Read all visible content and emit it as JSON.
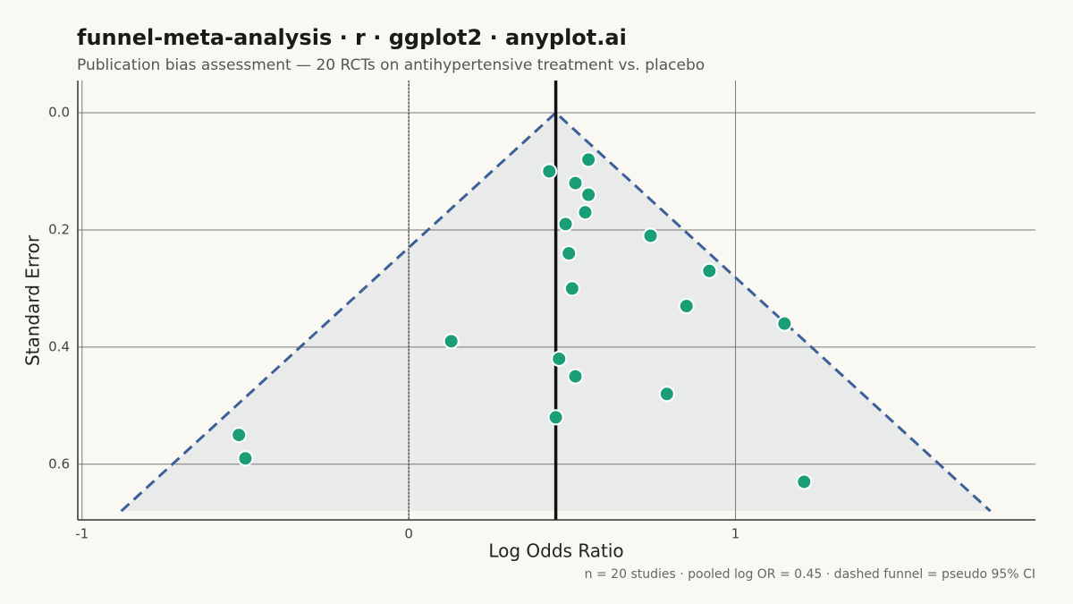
{
  "chart_data": {
    "type": "funnel",
    "title": "funnel-meta-analysis · r · ggplot2 · anyplot.ai",
    "subtitle": "Publication bias assessment — 20 RCTs on antihypertensive treatment vs. placebo",
    "x_label": "Log Odds Ratio",
    "y_label": "Standard Error",
    "caption": "n = 20 studies  ·  pooled log OR = 0.45  ·  dashed funnel = pseudo 95% CI",
    "xlim": [
      -1.013,
      1.918
    ],
    "ylim": [
      -0.055,
      0.695
    ],
    "y_reversed": true,
    "xticks": [
      -1,
      0,
      1
    ],
    "yticks": [
      {
        "value": 0,
        "label": "0.0"
      },
      0.2,
      0.4,
      0.6
    ],
    "grid": true,
    "pooled_x": 0.45,
    "null_x": 0,
    "funnel": {
      "x": [
        -0.88,
        0.45,
        1.78
      ],
      "y": [
        0.68,
        0,
        0.68
      ],
      "fill": "#e9eaea",
      "color": "#3d5f99"
    },
    "series": [
      {
        "color": "#1a9e77",
        "x": [
          0.55,
          0.43,
          0.51,
          0.55,
          0.54,
          0.48,
          0.74,
          0.49,
          0.92,
          0.5,
          0.85,
          1.15,
          0.13,
          0.46,
          0.51,
          0.79,
          0.45,
          -0.52,
          -0.5,
          1.21
        ],
        "values": [
          0.08,
          0.1,
          0.12,
          0.14,
          0.17,
          0.19,
          0.21,
          0.24,
          0.27,
          0.3,
          0.33,
          0.36,
          0.39,
          0.42,
          0.45,
          0.48,
          0.52,
          0.55,
          0.59,
          0.63
        ]
      }
    ]
  }
}
